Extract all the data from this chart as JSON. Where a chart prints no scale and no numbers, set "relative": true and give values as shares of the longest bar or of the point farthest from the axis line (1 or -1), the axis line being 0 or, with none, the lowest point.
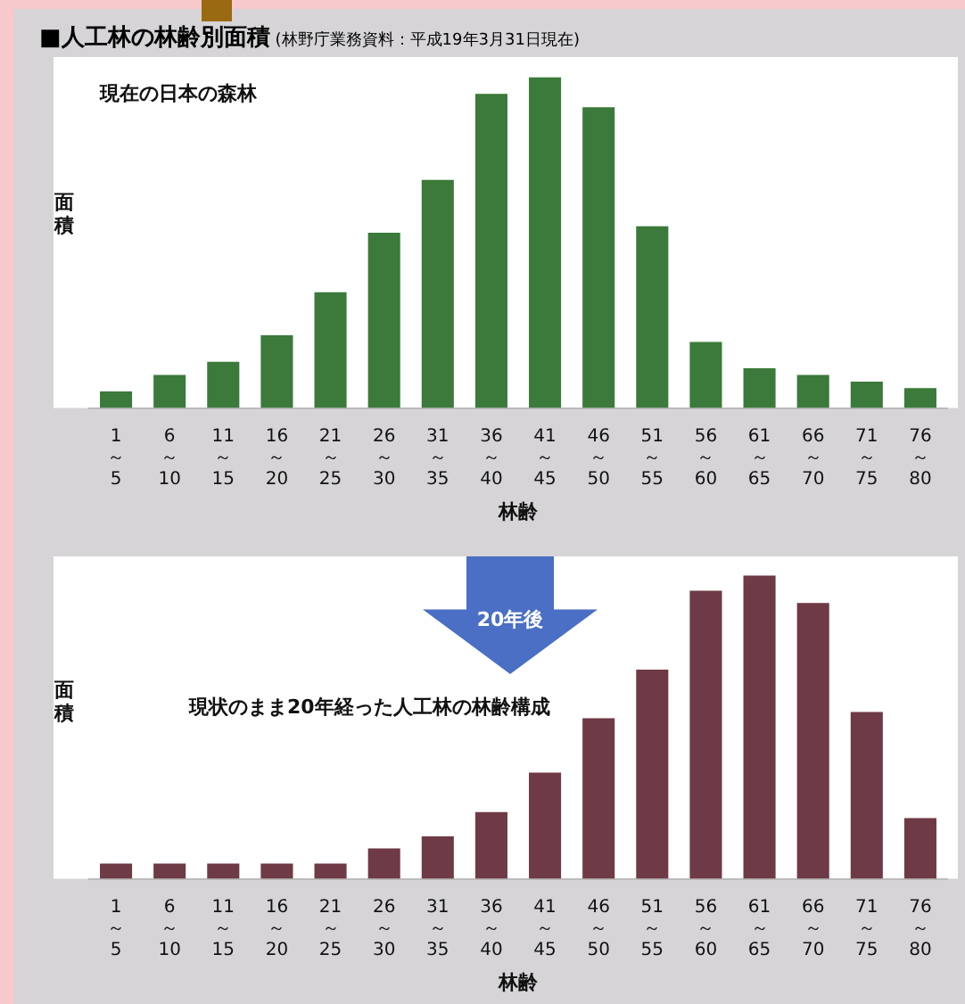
{
  "chart_data": [
    {
      "type": "bar",
      "title": "■人工林の林齢別面積",
      "subtitle": "(林野庁業務資料：平成19年3月31日現在)",
      "annotations": [
        "現在の日本の森林"
      ],
      "xlabel": "林齢",
      "ylabel": "面積",
      "relative": true,
      "color": "#3b7a3a",
      "categories": [
        "1～5",
        "6～10",
        "11～15",
        "16～20",
        "21～25",
        "26～30",
        "31～35",
        "36～40",
        "41～45",
        "46～50",
        "51～55",
        "56～60",
        "61～65",
        "66～70",
        "71～75",
        "76～80"
      ],
      "values": [
        0.05,
        0.1,
        0.14,
        0.22,
        0.35,
        0.53,
        0.69,
        0.95,
        1,
        0.91,
        0.55,
        0.2,
        0.12,
        0.1,
        0.08,
        0.06
      ]
    },
    {
      "type": "bar",
      "annotations": [
        "20年後",
        "現状のまま20年経った人工林の林齢構成"
      ],
      "xlabel": "林齢",
      "ylabel": "面積",
      "relative": true,
      "color": "#6e3a45",
      "categories": [
        "1～5",
        "6～10",
        "11～15",
        "16～20",
        "21～25",
        "26～30",
        "31～35",
        "36～40",
        "41～45",
        "46～50",
        "51～55",
        "56～60",
        "61～65",
        "66～70",
        "71～75",
        "76～80"
      ],
      "values": [
        0.05,
        0.05,
        0.05,
        0.05,
        0.05,
        0.1,
        0.14,
        0.22,
        0.35,
        0.53,
        0.69,
        0.95,
        1,
        0.91,
        0.55,
        0.2
      ]
    }
  ]
}
